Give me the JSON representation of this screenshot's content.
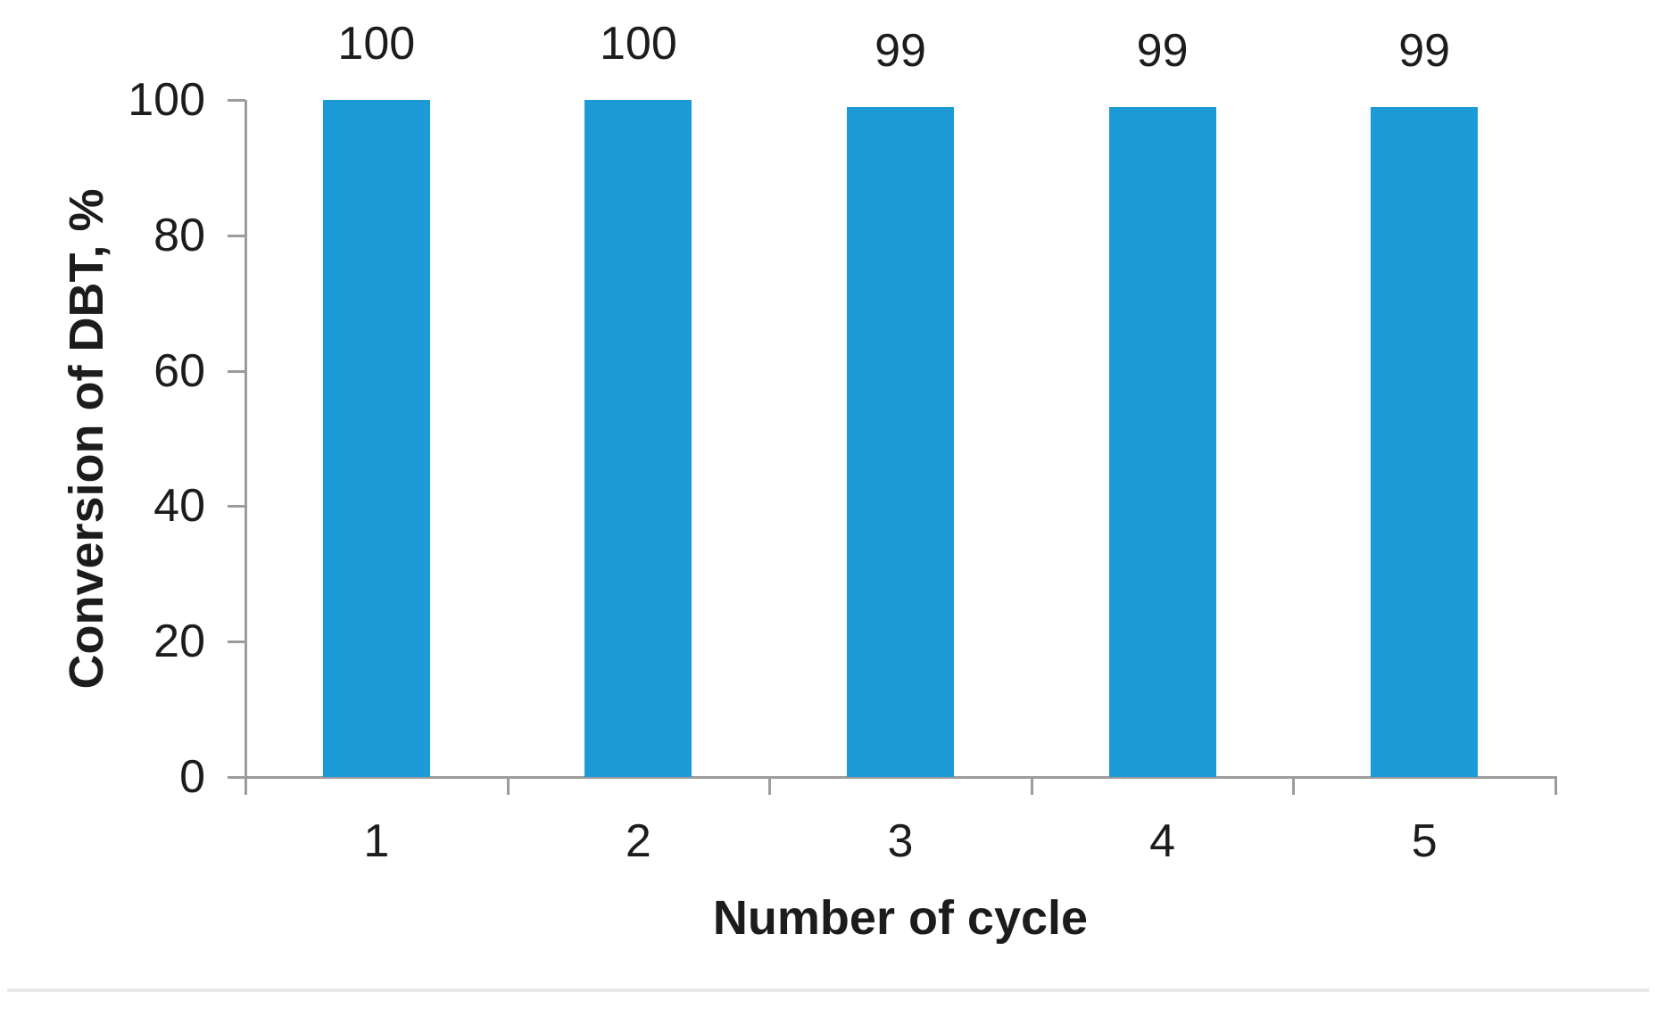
{
  "chart_data": {
    "type": "bar",
    "title": "",
    "categories": [
      "1",
      "2",
      "3",
      "4",
      "5"
    ],
    "values": [
      100,
      100,
      99,
      99,
      99
    ],
    "data_labels": [
      "100",
      "100",
      "99",
      "99",
      "99"
    ],
    "xlabel": "Number of cycle",
    "ylabel": "Conversion of DBT, %",
    "yticks": [
      0,
      20,
      40,
      60,
      80,
      100
    ],
    "ytick_labels": [
      "0",
      "20",
      "40",
      "60",
      "80",
      "100"
    ],
    "ylim": [
      0,
      100
    ],
    "grid": false,
    "legend": null,
    "colors": {
      "bar": "#1b9ad6",
      "axis": "#9c9c9c",
      "text": "#1c1c1c",
      "separator": "#e9e9e9"
    }
  }
}
